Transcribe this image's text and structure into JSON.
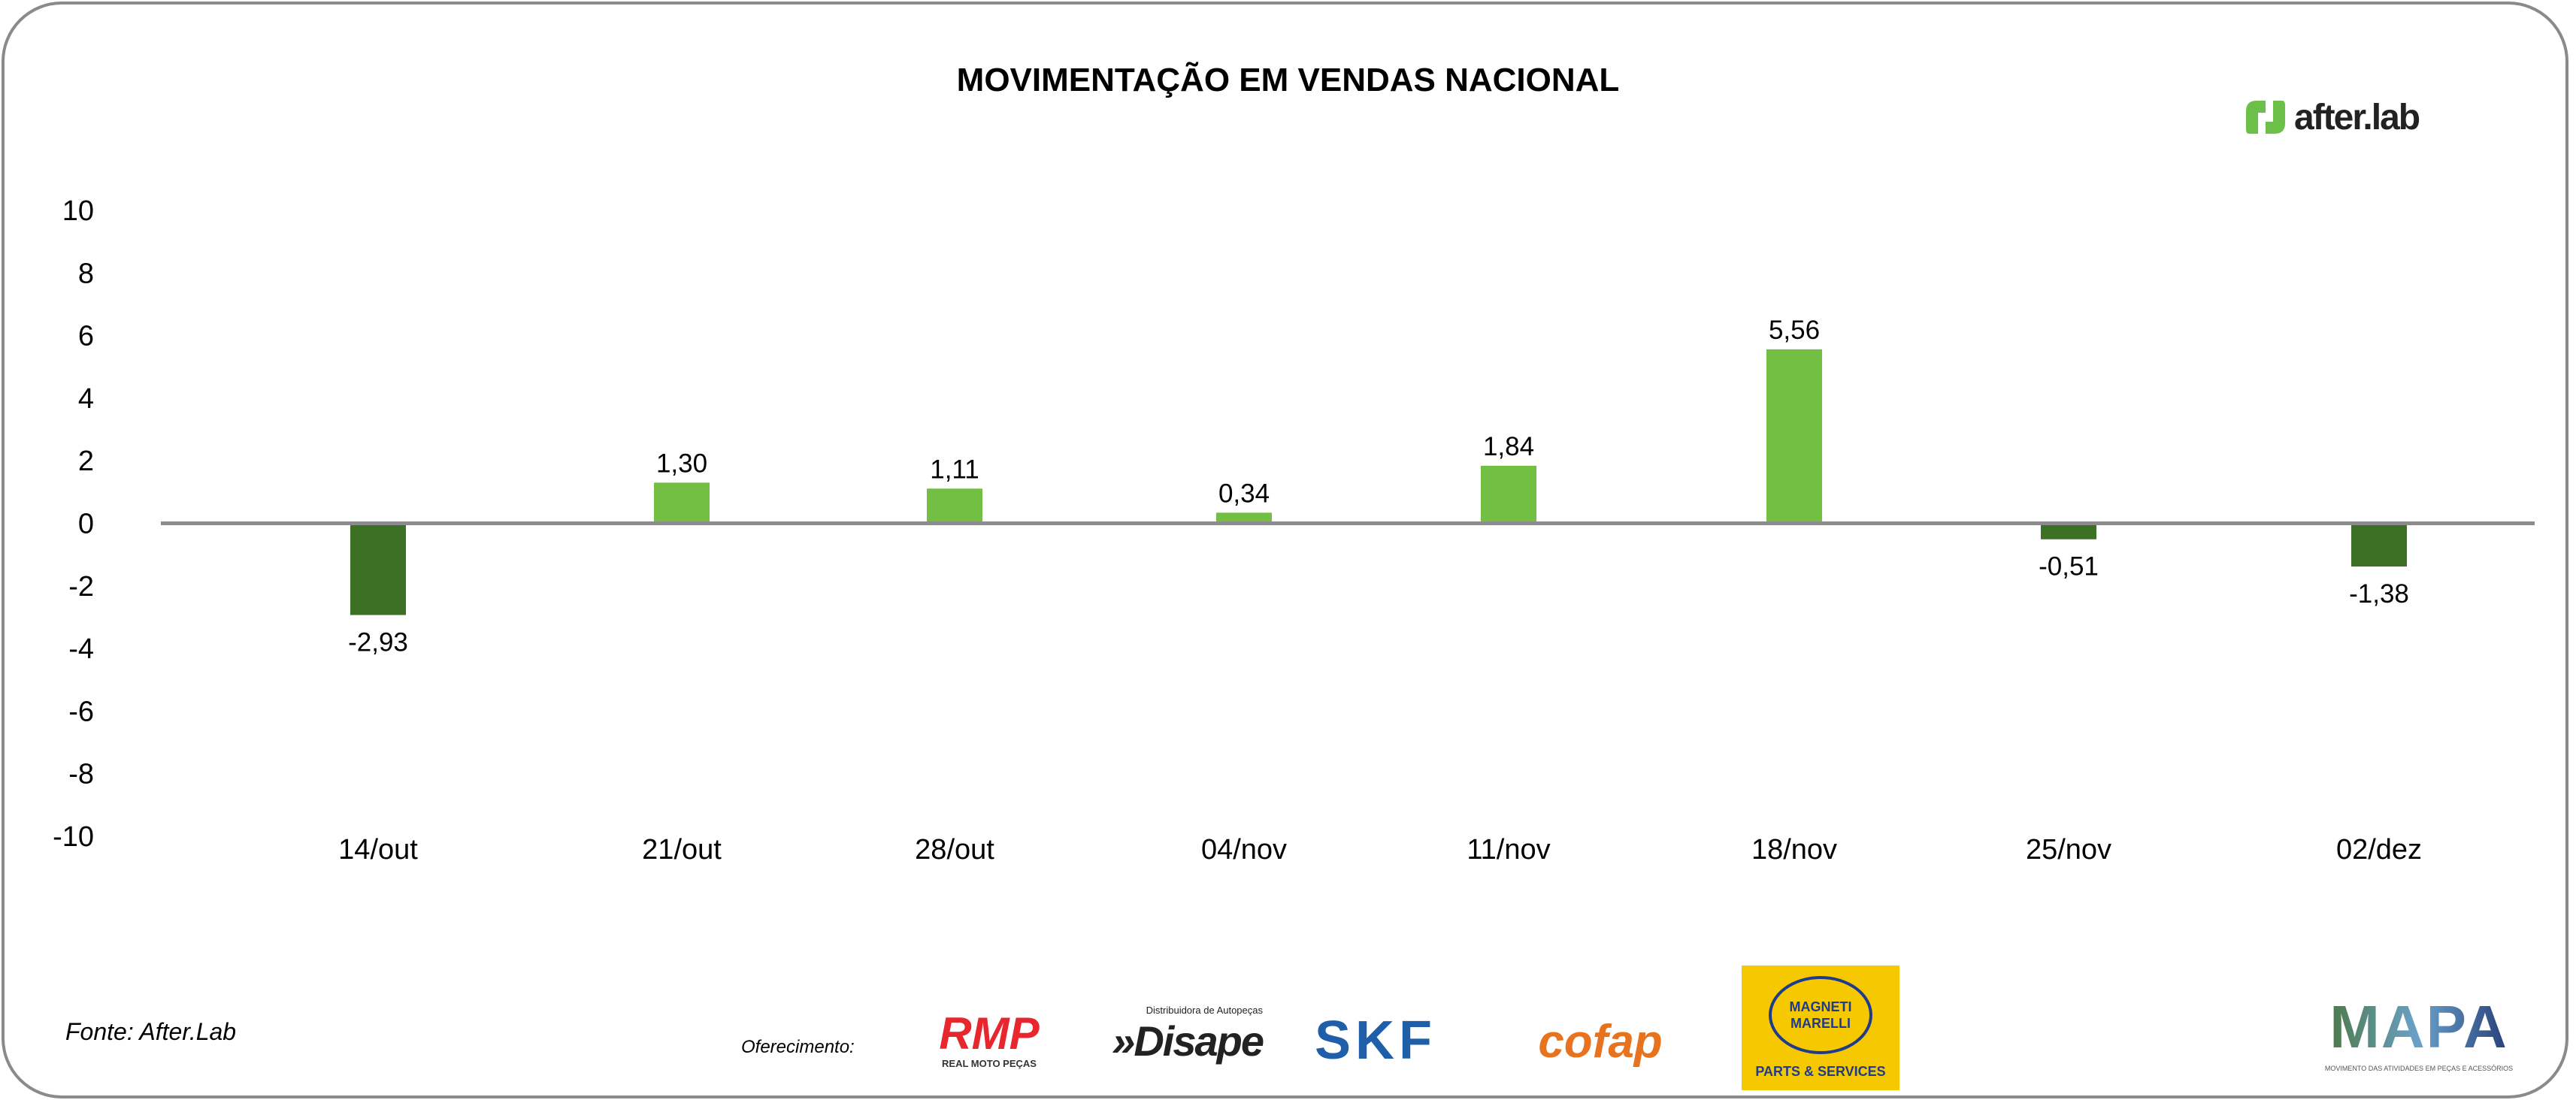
{
  "title": "MOVIMENTAÇÃO EM VENDAS NACIONAL",
  "brand": {
    "name": "after.lab",
    "color": "#6cc04a"
  },
  "chart_data": {
    "type": "bar",
    "title": "MOVIMENTAÇÃO EM VENDAS NACIONAL",
    "categories": [
      "14/out",
      "21/out",
      "28/out",
      "04/nov",
      "11/nov",
      "18/nov",
      "25/nov",
      "02/dez"
    ],
    "values": [
      -2.93,
      1.3,
      1.11,
      0.34,
      1.84,
      5.56,
      -0.51,
      -1.38
    ],
    "data_labels": [
      "-2,93",
      "1,30",
      "1,11",
      "0,34",
      "1,84",
      "5,56",
      "-0,51",
      "-1,38"
    ],
    "ylim": [
      -10,
      10
    ],
    "yticks": [
      "10",
      "8",
      "6",
      "4",
      "2",
      "0",
      "-2",
      "-4",
      "-6",
      "-8",
      "-10"
    ],
    "ytick_values": [
      10,
      8,
      6,
      4,
      2,
      0,
      -2,
      -4,
      -6,
      -8,
      -10
    ],
    "grid": false,
    "colors": {
      "positive": "#72bf44",
      "negative": "#3b7025",
      "zero_line": "#8c8c8c"
    }
  },
  "footer": {
    "source": "Fonte: After.Lab",
    "sponsor_label": "Oferecimento:",
    "sponsors": {
      "rmp": {
        "name": "RMP",
        "tagline": "REAL MOTO PEÇAS"
      },
      "disape": {
        "name": "»Disape",
        "tagline": "Distribuidora de Autopeças"
      },
      "skf": {
        "name": "SKF"
      },
      "cofap": {
        "name": "cofap"
      },
      "magneti": {
        "name": "MAGNETI MARELLI",
        "tagline": "PARTS & SERVICES"
      }
    },
    "mapa": {
      "name": "MAPA",
      "tagline": "MOVIMENTO DAS ATIVIDADES EM PEÇAS E ACESSÓRIOS"
    }
  }
}
